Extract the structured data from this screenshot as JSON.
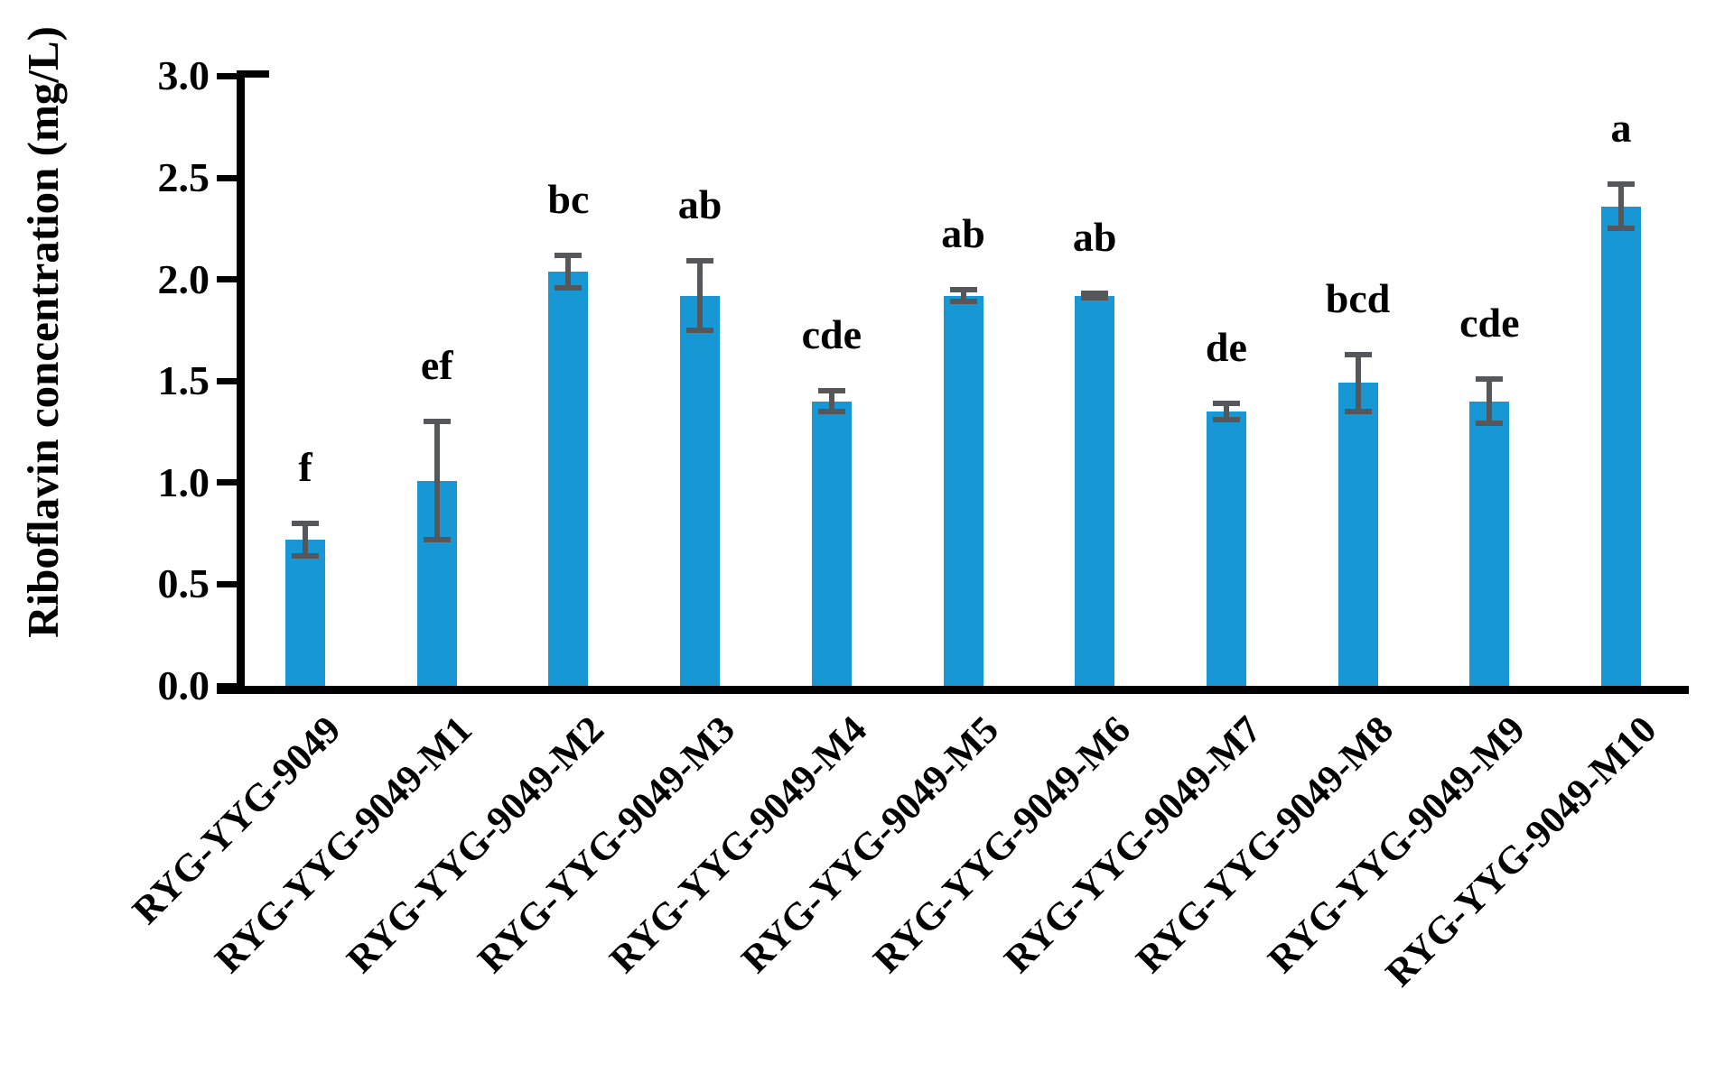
{
  "chart_data": {
    "type": "bar",
    "title": "",
    "xlabel": "",
    "ylabel": "Riboflavin concentration (mg/L)",
    "ylim": [
      0.0,
      3.0
    ],
    "yticks": [
      0.0,
      0.5,
      1.0,
      1.5,
      2.0,
      2.5,
      3.0
    ],
    "ytick_labels": [
      "0.0",
      "0.5",
      "1.0",
      "1.5",
      "2.0",
      "2.5",
      "3.0"
    ],
    "grid": false,
    "legend": "none",
    "bar_color": "#1797D4",
    "error_bar_color": "#56575A",
    "axis_color": "#000000",
    "categories": [
      "RYG-YYG-9049",
      "RYG-YYG-9049-M1",
      "RYG-YYG-9049-M2",
      "RYG-YYG-9049-M3",
      "RYG-YYG-9049-M4",
      "RYG-YYG-9049-M5",
      "RYG-YYG-9049-M6",
      "RYG-YYG-9049-M7",
      "RYG-YYG-9049-M8",
      "RYG-YYG-9049-M9",
      "RYG-YYG-9049-M10"
    ],
    "values": [
      0.72,
      1.01,
      2.04,
      1.92,
      1.4,
      1.92,
      1.92,
      1.35,
      1.49,
      1.4,
      2.36
    ],
    "errors": [
      0.08,
      0.29,
      0.08,
      0.17,
      0.05,
      0.03,
      0.01,
      0.04,
      0.14,
      0.11,
      0.11
    ],
    "significance_letters": [
      "f",
      "ef",
      "bc",
      "ab",
      "cde",
      "ab",
      "ab",
      "de",
      "bcd",
      "cde",
      "a"
    ]
  }
}
